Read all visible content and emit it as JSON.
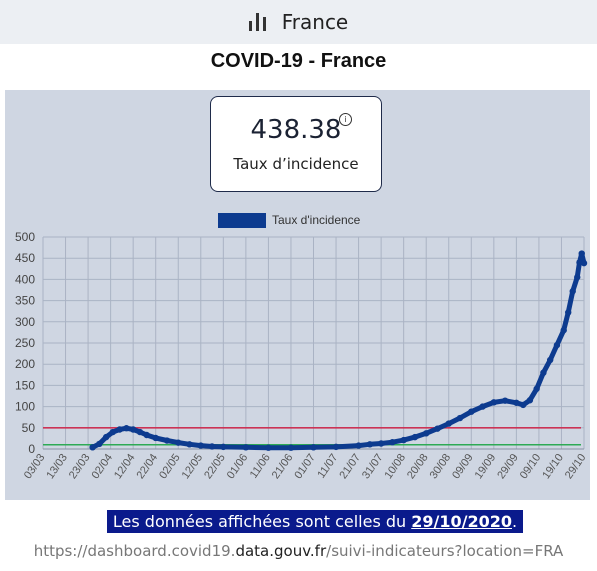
{
  "header": {
    "country": "France",
    "icon": "bar-chart-icon"
  },
  "page_title": "COVID-19 - France",
  "card": {
    "value": "438.38",
    "label": "Taux d’incidence",
    "info_icon": "info-icon"
  },
  "footer": {
    "note_prefix": "Les données affichées sont celles du ",
    "note_date": "29/10/2020",
    "note_suffix": ".",
    "url_prefix": "https://dashboard.covid19.",
    "url_domain": "data.gouv.fr",
    "url_suffix": "/suivi-indicateurs?location=FRA"
  },
  "colors": {
    "series": "#0d3b8f",
    "threshold_red": "#cc3355",
    "threshold_green": "#2eaa55",
    "panel": "#cfd6e2"
  },
  "chart_data": {
    "type": "line",
    "title": "",
    "legend": {
      "label": "Taux d'incidence",
      "placement": "top"
    },
    "xlabel": "",
    "ylabel": "",
    "ylim": [
      0,
      500
    ],
    "yticks": [
      0,
      50,
      100,
      150,
      200,
      250,
      300,
      350,
      400,
      450,
      500
    ],
    "x_range": [
      "2020-03-03",
      "2020-10-29"
    ],
    "xtick_labels": [
      "03/03",
      "13/03",
      "23/03",
      "02/04",
      "12/04",
      "22/04",
      "02/05",
      "12/05",
      "22/05",
      "01/06",
      "11/06",
      "21/06",
      "01/07",
      "11/07",
      "21/07",
      "31/07",
      "10/08",
      "20/08",
      "30/08",
      "09/09",
      "19/09",
      "29/09",
      "09/10",
      "19/10",
      "29/10"
    ],
    "thresholds": [
      {
        "value": 50,
        "color": "#cc3355"
      },
      {
        "value": 10,
        "color": "#2eaa55"
      }
    ],
    "series": [
      {
        "name": "Taux d'incidence",
        "points": [
          [
            "2020-03-25",
            4
          ],
          [
            "2020-03-28",
            12
          ],
          [
            "2020-03-31",
            28
          ],
          [
            "2020-04-03",
            40
          ],
          [
            "2020-04-06",
            46
          ],
          [
            "2020-04-09",
            49
          ],
          [
            "2020-04-12",
            46
          ],
          [
            "2020-04-15",
            40
          ],
          [
            "2020-04-18",
            33
          ],
          [
            "2020-04-22",
            26
          ],
          [
            "2020-04-27",
            20
          ],
          [
            "2020-05-02",
            15
          ],
          [
            "2020-05-07",
            11
          ],
          [
            "2020-05-12",
            8
          ],
          [
            "2020-05-17",
            6
          ],
          [
            "2020-05-22",
            5
          ],
          [
            "2020-06-01",
            4
          ],
          [
            "2020-06-11",
            3
          ],
          [
            "2020-06-21",
            3
          ],
          [
            "2020-07-01",
            4
          ],
          [
            "2020-07-11",
            5
          ],
          [
            "2020-07-21",
            8
          ],
          [
            "2020-07-26",
            11
          ],
          [
            "2020-07-31",
            13
          ],
          [
            "2020-08-05",
            16
          ],
          [
            "2020-08-10",
            21
          ],
          [
            "2020-08-15",
            28
          ],
          [
            "2020-08-20",
            37
          ],
          [
            "2020-08-25",
            48
          ],
          [
            "2020-08-30",
            60
          ],
          [
            "2020-09-04",
            73
          ],
          [
            "2020-09-09",
            88
          ],
          [
            "2020-09-14",
            100
          ],
          [
            "2020-09-19",
            110
          ],
          [
            "2020-09-24",
            114
          ],
          [
            "2020-09-29",
            109
          ],
          [
            "2020-10-02",
            104
          ],
          [
            "2020-10-05",
            115
          ],
          [
            "2020-10-08",
            142
          ],
          [
            "2020-10-11",
            180
          ],
          [
            "2020-10-14",
            210
          ],
          [
            "2020-10-17",
            245
          ],
          [
            "2020-10-20",
            280
          ],
          [
            "2020-10-22",
            322
          ],
          [
            "2020-10-24",
            372
          ],
          [
            "2020-10-26",
            405
          ],
          [
            "2020-10-27",
            440
          ],
          [
            "2020-10-28",
            461
          ],
          [
            "2020-10-29",
            438.38
          ]
        ]
      }
    ]
  }
}
